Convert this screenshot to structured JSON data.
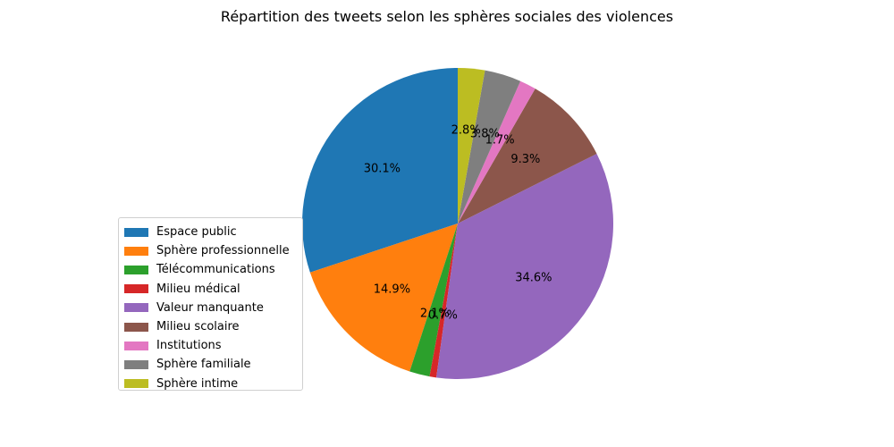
{
  "chart_data": {
    "type": "pie",
    "title": "Répartition des tweets selon les sphères sociales des violences",
    "start_angle_deg": 90,
    "direction": "counterclockwise",
    "legend_position": "lower-left",
    "slices": [
      {
        "label": "Espace public",
        "value": 30.1,
        "pct_label": "30.1%",
        "color": "#1f77b4"
      },
      {
        "label": "Sphère professionnelle",
        "value": 14.9,
        "pct_label": "14.9%",
        "color": "#ff7f0e"
      },
      {
        "label": "Télécommunications",
        "value": 2.1,
        "pct_label": "2.1%",
        "color": "#2ca02c"
      },
      {
        "label": "Milieu médical",
        "value": 0.7,
        "pct_label": "0.7%",
        "color": "#d62728"
      },
      {
        "label": "Valeur manquante",
        "value": 34.6,
        "pct_label": "34.6%",
        "color": "#9467bd"
      },
      {
        "label": "Milieu scolaire",
        "value": 9.3,
        "pct_label": "9.3%",
        "color": "#8c564b"
      },
      {
        "label": "Institutions",
        "value": 1.7,
        "pct_label": "1.7%",
        "color": "#e377c2"
      },
      {
        "label": "Sphère familiale",
        "value": 3.8,
        "pct_label": "3.8%",
        "color": "#7f7f7f"
      },
      {
        "label": "Sphère intime",
        "value": 2.8,
        "pct_label": "2.8%",
        "color": "#bcbd22"
      }
    ]
  }
}
